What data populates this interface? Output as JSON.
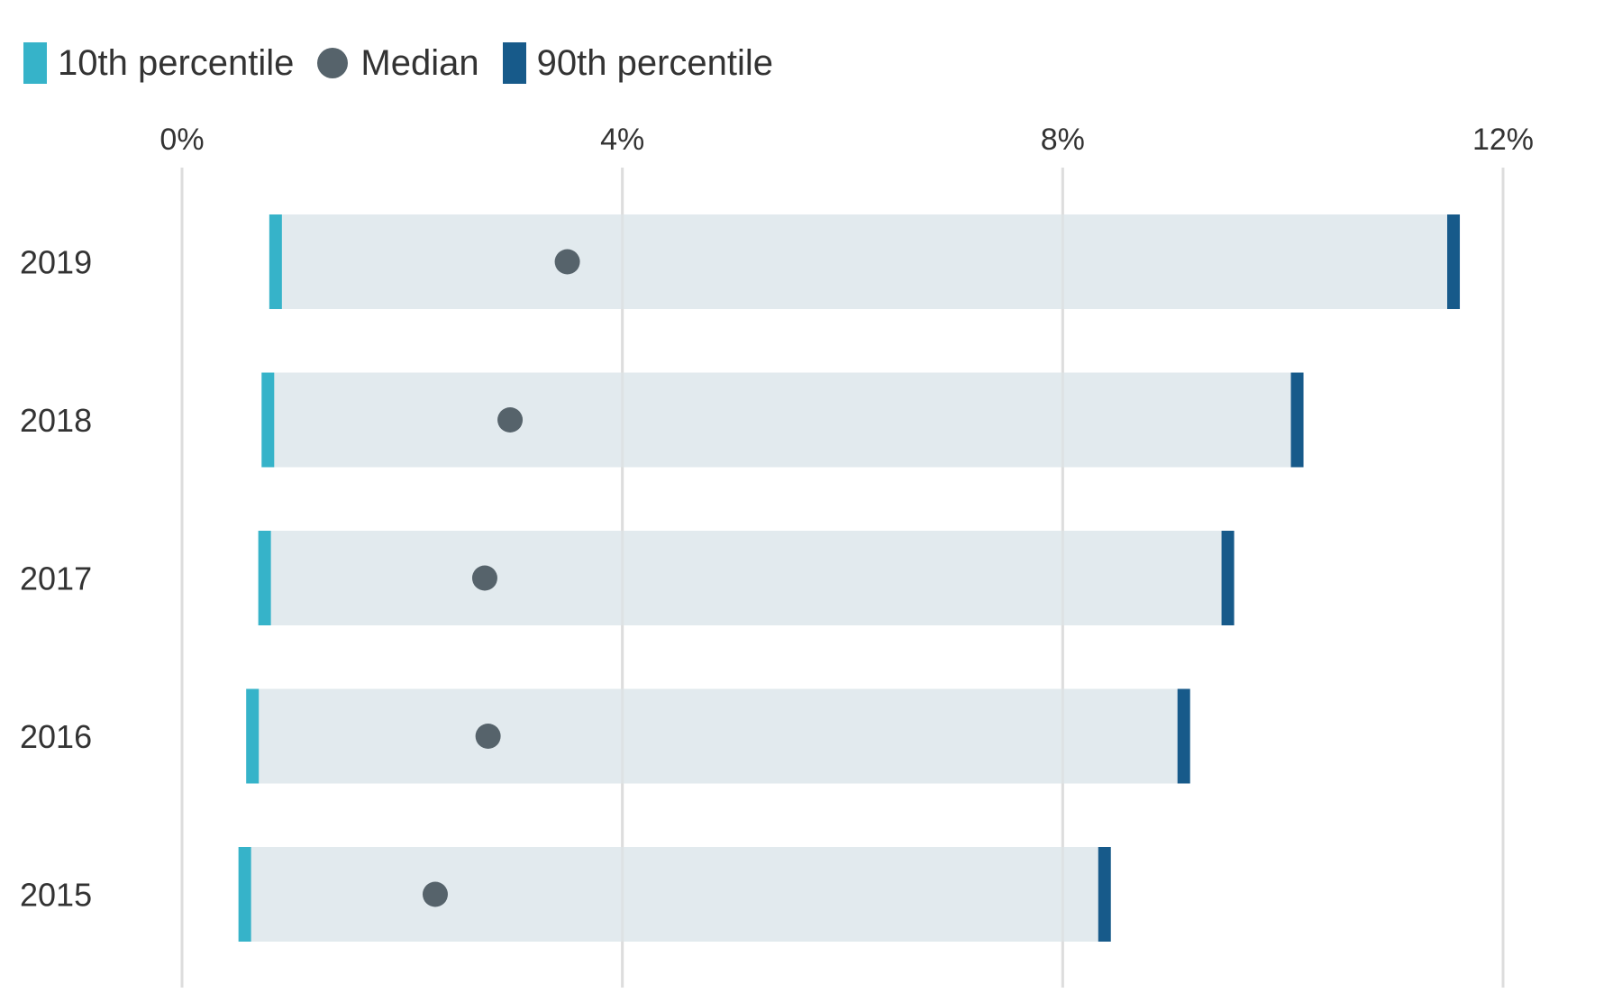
{
  "legend": {
    "p10_label": "10th percentile",
    "median_label": "Median",
    "p90_label": "90th percentile"
  },
  "colors": {
    "p10": "#36b3c9",
    "median": "#56636b",
    "p90": "#175a8a",
    "range": "#dde6eb",
    "grid": "#dddddd"
  },
  "chart_data": {
    "type": "range-dot",
    "orientation": "horizontal",
    "categories": [
      "2019",
      "2018",
      "2017",
      "2016",
      "2015"
    ],
    "series": [
      {
        "name": "10th percentile",
        "values": [
          0.85,
          0.78,
          0.75,
          0.64,
          0.57
        ]
      },
      {
        "name": "Median",
        "values": [
          3.5,
          2.98,
          2.75,
          2.78,
          2.3
        ]
      },
      {
        "name": "90th percentile",
        "values": [
          11.55,
          10.13,
          9.5,
          9.1,
          8.38
        ]
      }
    ],
    "xlim": [
      0,
      12
    ],
    "xticks": [
      0,
      4,
      8,
      12
    ],
    "xtick_labels": [
      "0%",
      "4%",
      "8%",
      "12%"
    ],
    "xaxis_position": "top",
    "grid": true,
    "legend_position": "top-left"
  }
}
